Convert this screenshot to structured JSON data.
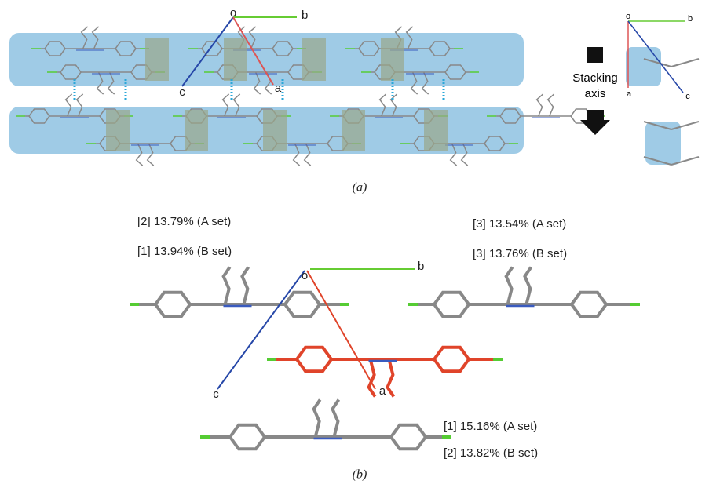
{
  "panel_a": {
    "axes": {
      "origin": "o",
      "b": "b",
      "c": "c",
      "a": "a"
    },
    "side_view_axes": {
      "origin": "o",
      "b": "b",
      "a": "a",
      "c": "c"
    },
    "stacking_label": [
      "Stacking",
      "axis"
    ],
    "caption": "(a)"
  },
  "panel_b": {
    "axes": {
      "origin": "o",
      "b": "b",
      "c": "c",
      "a": "a"
    },
    "contacts": [
      "[2] 13.79% (A set)",
      "[1] 13.94% (B set)",
      "[3] 13.54% (A set)",
      "[3] 13.76% (B set)",
      "[1] 15.16% (A set)",
      "[2] 13.82% (B set)"
    ],
    "caption": "(b)"
  }
}
